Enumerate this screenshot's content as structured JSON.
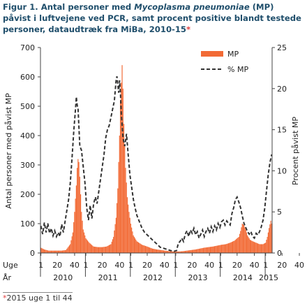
{
  "caption": {
    "label": "Figur 1.",
    "text_before": "Antal personer med ",
    "italic": "Mycoplasma pneumoniae",
    "text_after": " (MP) påvist i luftvejene ved PCR, samt procent positive blandt testede personer, dataudtræk fra MiBa, 2010-15",
    "star": "*"
  },
  "footnote": {
    "star": "*",
    "text": "2015 uge 1 til 44"
  },
  "chart_data": {
    "type": "bar",
    "title": "",
    "ylabel": "Antal personer med påvist MP",
    "y2label": "Procent påvist MP",
    "ylim": [
      0,
      700
    ],
    "y2lim": [
      0,
      25
    ],
    "yticks": [
      0,
      100,
      200,
      300,
      400,
      500,
      600,
      700
    ],
    "y2ticks": [
      0,
      5,
      10,
      15,
      20,
      25
    ],
    "grid": false,
    "legend_position": "top-right",
    "week_row_label": "Uge",
    "year_row_label": "År",
    "x_week_ticks": [
      "1",
      "20",
      "40",
      "1",
      "20",
      "40",
      "1",
      "20",
      "40",
      "1",
      "20",
      "40",
      "1",
      "20",
      "40",
      "1",
      "20",
      "40"
    ],
    "years": [
      "2010",
      "2011",
      "2012",
      "2013",
      "2014",
      "2015"
    ],
    "colors": {
      "bars": "#f26a35",
      "line": "#333333",
      "axis": "#444444"
    },
    "bar_series": {
      "name": "MP",
      "anchors": [
        [
          1,
          18
        ],
        [
          5,
          12
        ],
        [
          10,
          8
        ],
        [
          15,
          8
        ],
        [
          20,
          8
        ],
        [
          25,
          8
        ],
        [
          30,
          10
        ],
        [
          35,
          30
        ],
        [
          38,
          70
        ],
        [
          40,
          140
        ],
        [
          42,
          230
        ],
        [
          43,
          290
        ],
        [
          44,
          320
        ],
        [
          45,
          310
        ],
        [
          46,
          260
        ],
        [
          47,
          200
        ],
        [
          48,
          140
        ],
        [
          50,
          80
        ],
        [
          53,
          50
        ],
        [
          57,
          35
        ],
        [
          62,
          22
        ],
        [
          67,
          20
        ],
        [
          72,
          20
        ],
        [
          77,
          22
        ],
        [
          82,
          30
        ],
        [
          85,
          55
        ],
        [
          88,
          120
        ],
        [
          90,
          220
        ],
        [
          92,
          400
        ],
        [
          93,
          520
        ],
        [
          94,
          580
        ],
        [
          95,
          640
        ],
        [
          96,
          560
        ],
        [
          97,
          440
        ],
        [
          99,
          290
        ],
        [
          101,
          190
        ],
        [
          103,
          140
        ],
        [
          105,
          100
        ],
        [
          108,
          60
        ],
        [
          112,
          40
        ],
        [
          118,
          28
        ],
        [
          124,
          22
        ],
        [
          130,
          15
        ],
        [
          135,
          12
        ],
        [
          140,
          10
        ],
        [
          145,
          8
        ],
        [
          150,
          6
        ],
        [
          155,
          5
        ],
        [
          160,
          5
        ],
        [
          165,
          6
        ],
        [
          170,
          8
        ],
        [
          175,
          10
        ],
        [
          180,
          12
        ],
        [
          185,
          15
        ],
        [
          190,
          18
        ],
        [
          195,
          20
        ],
        [
          200,
          22
        ],
        [
          205,
          25
        ],
        [
          210,
          28
        ],
        [
          215,
          30
        ],
        [
          220,
          35
        ],
        [
          225,
          42
        ],
        [
          230,
          55
        ],
        [
          232,
          75
        ],
        [
          234,
          100
        ],
        [
          236,
          95
        ],
        [
          238,
          80
        ],
        [
          240,
          60
        ],
        [
          243,
          45
        ],
        [
          246,
          40
        ],
        [
          250,
          35
        ],
        [
          254,
          30
        ],
        [
          258,
          30
        ],
        [
          261,
          35
        ],
        [
          263,
          55
        ],
        [
          265,
          85
        ],
        [
          267,
          110
        ],
        [
          268,
          100
        ]
      ]
    },
    "line_series": {
      "name": "% MP",
      "anchors": [
        [
          1,
          3.3
        ],
        [
          3,
          2.3
        ],
        [
          5,
          3.7
        ],
        [
          7,
          2.5
        ],
        [
          9,
          3.6
        ],
        [
          11,
          2.4
        ],
        [
          13,
          3.0
        ],
        [
          15,
          2.1
        ],
        [
          17,
          2.7
        ],
        [
          19,
          2.0
        ],
        [
          21,
          2.5
        ],
        [
          23,
          2.0
        ],
        [
          25,
          3.5
        ],
        [
          27,
          2.5
        ],
        [
          30,
          4.5
        ],
        [
          33,
          6.5
        ],
        [
          35,
          8.5
        ],
        [
          37,
          11.5
        ],
        [
          39,
          14.8
        ],
        [
          41,
          17.5
        ],
        [
          42,
          19.0
        ],
        [
          43,
          18.0
        ],
        [
          44,
          17.5
        ],
        [
          46,
          13.0
        ],
        [
          48,
          12.5
        ],
        [
          50,
          10.5
        ],
        [
          52,
          8.5
        ],
        [
          54,
          5.5
        ],
        [
          56,
          4.0
        ],
        [
          58,
          5.8
        ],
        [
          60,
          4.2
        ],
        [
          62,
          6.0
        ],
        [
          64,
          6.8
        ],
        [
          66,
          6.0
        ],
        [
          68,
          7.5
        ],
        [
          70,
          9.0
        ],
        [
          72,
          10.5
        ],
        [
          74,
          12.0
        ],
        [
          76,
          14.0
        ],
        [
          78,
          15.0
        ],
        [
          80,
          15.5
        ],
        [
          82,
          16.5
        ],
        [
          84,
          17.5
        ],
        [
          86,
          18.5
        ],
        [
          88,
          21.0
        ],
        [
          89,
          21.5
        ],
        [
          90,
          20.5
        ],
        [
          91,
          19.5
        ],
        [
          92,
          21.0
        ],
        [
          93,
          19.5
        ],
        [
          94,
          17.0
        ],
        [
          96,
          14.0
        ],
        [
          98,
          13.0
        ],
        [
          100,
          14.5
        ],
        [
          102,
          12.0
        ],
        [
          104,
          9.5
        ],
        [
          106,
          8.0
        ],
        [
          108,
          6.5
        ],
        [
          110,
          5.5
        ],
        [
          112,
          4.6
        ],
        [
          115,
          3.8
        ],
        [
          118,
          3.0
        ],
        [
          121,
          2.5
        ],
        [
          124,
          2.2
        ],
        [
          127,
          1.9
        ],
        [
          130,
          1.6
        ],
        [
          133,
          1.3
        ],
        [
          136,
          1.0
        ],
        [
          139,
          0.7
        ],
        [
          142,
          0.6
        ],
        [
          145,
          0.5
        ],
        [
          148,
          0.4
        ],
        [
          151,
          0.3
        ],
        [
          155,
          0.2
        ],
        [
          158,
          0.3
        ],
        [
          160,
          1.2
        ],
        [
          162,
          1.4
        ],
        [
          164,
          1.8
        ],
        [
          166,
          1.4
        ],
        [
          168,
          2.3
        ],
        [
          170,
          2.7
        ],
        [
          172,
          2.0
        ],
        [
          174,
          2.8
        ],
        [
          176,
          2.4
        ],
        [
          178,
          3.0
        ],
        [
          180,
          2.2
        ],
        [
          182,
          2.6
        ],
        [
          184,
          1.8
        ],
        [
          186,
          2.3
        ],
        [
          188,
          2.8
        ],
        [
          190,
          2.0
        ],
        [
          192,
          2.6
        ],
        [
          194,
          3.0
        ],
        [
          196,
          2.4
        ],
        [
          198,
          3.2
        ],
        [
          200,
          2.6
        ],
        [
          202,
          3.3
        ],
        [
          204,
          2.8
        ],
        [
          206,
          3.6
        ],
        [
          208,
          3.1
        ],
        [
          210,
          3.8
        ],
        [
          212,
          4.0
        ],
        [
          214,
          3.4
        ],
        [
          216,
          3.9
        ],
        [
          218,
          3.6
        ],
        [
          220,
          3.4
        ],
        [
          222,
          4.8
        ],
        [
          224,
          5.5
        ],
        [
          226,
          6.5
        ],
        [
          228,
          6.8
        ],
        [
          230,
          6.2
        ],
        [
          232,
          5.5
        ],
        [
          234,
          4.5
        ],
        [
          236,
          3.6
        ],
        [
          238,
          3.1
        ],
        [
          240,
          2.6
        ],
        [
          242,
          2.3
        ],
        [
          244,
          2.6
        ],
        [
          246,
          2.0
        ],
        [
          248,
          1.8
        ],
        [
          250,
          2.4
        ],
        [
          252,
          2.2
        ],
        [
          254,
          2.6
        ],
        [
          256,
          3.2
        ],
        [
          258,
          4.0
        ],
        [
          260,
          5.5
        ],
        [
          262,
          7.5
        ],
        [
          264,
          9.5
        ],
        [
          266,
          11.0
        ],
        [
          268,
          12.0
        ]
      ]
    }
  }
}
